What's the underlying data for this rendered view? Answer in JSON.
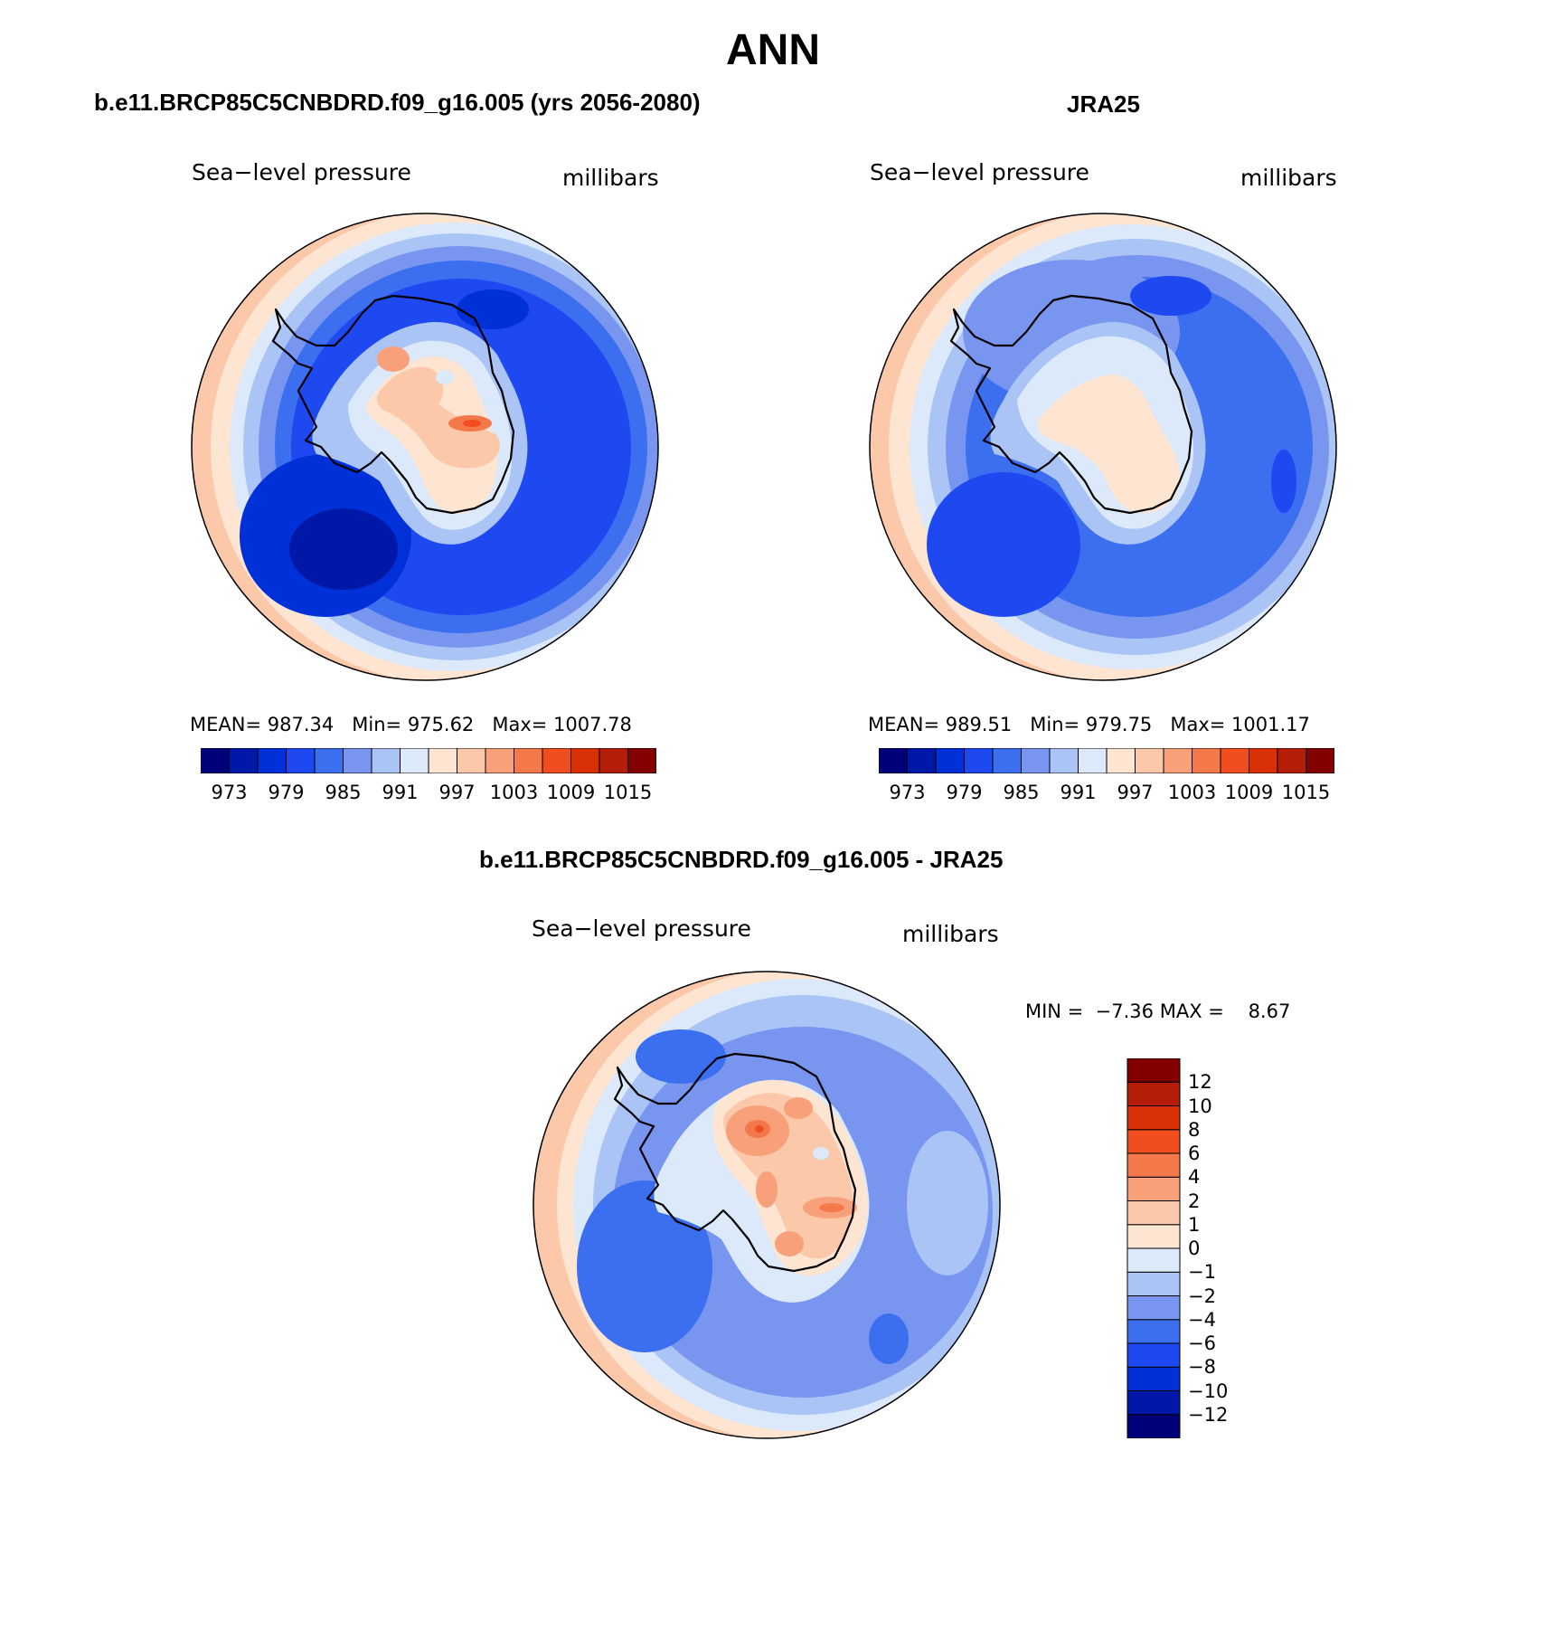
{
  "title": "ANN",
  "panels": [
    {
      "id": "model",
      "title": "b.e11.BRCP85C5CNBDRD.f09_g16.005 (yrs 2056-2080)",
      "variable": "Sea−level pressure",
      "units": "millibars",
      "mean_label": "MEAN=",
      "mean": "987.34",
      "min_label": "Min=",
      "min": "975.62",
      "max_label": "Max=",
      "max": "1007.78"
    },
    {
      "id": "obs",
      "title": "JRA25",
      "variable": "Sea−level pressure",
      "units": "millibars",
      "mean_label": "MEAN=",
      "mean": "989.51",
      "min_label": "Min=",
      "min": "979.75",
      "max_label": "Max=",
      "max": "1001.17"
    },
    {
      "id": "diff",
      "title": "b.e11.BRCP85C5CNBDRD.f09_g16.005 - JRA25",
      "variable": "Sea−level pressure",
      "units": "millibars",
      "min_label": "MIN =",
      "min": "−7.36",
      "max_label": "MAX =",
      "max": "8.67"
    }
  ],
  "colorbar_abs": {
    "colors": [
      "#000078",
      "#0018a8",
      "#0030d8",
      "#1e48f0",
      "#3c6ef0",
      "#7896f0",
      "#aac4f6",
      "#dce9fb",
      "#fde5d2",
      "#fbc8aa",
      "#f8a07a",
      "#f5784a",
      "#f04e1e",
      "#da3008",
      "#b41e08",
      "#820000"
    ],
    "tick_labels": [
      "973",
      "979",
      "985",
      "991",
      "997",
      "1003",
      "1009",
      "1015"
    ]
  },
  "colorbar_diff": {
    "colors": [
      "#000078",
      "#0018a8",
      "#0030d8",
      "#1e48f0",
      "#3c6ef0",
      "#7896f0",
      "#aac4f6",
      "#dce9fb",
      "#fde5d2",
      "#fbc8aa",
      "#f8a07a",
      "#f5784a",
      "#f04e1e",
      "#da3008",
      "#b41e08",
      "#820000"
    ],
    "tick_labels": [
      "12",
      "10",
      "8",
      "6",
      "4",
      "2",
      "1",
      "0",
      "−1",
      "−2",
      "−4",
      "−6",
      "−8",
      "−10",
      "−12"
    ]
  },
  "chart_data": [
    {
      "type": "heatmap",
      "title": "b.e11.BRCP85C5CNBDRD.f09_g16.005 (yrs 2056-2080)",
      "variable": "Sea−level pressure",
      "units": "millibars",
      "projection": "south polar stereographic",
      "contour_levels": [
        973,
        976,
        979,
        982,
        985,
        988,
        991,
        994,
        997,
        1000,
        1003,
        1006,
        1009,
        1012,
        1015
      ],
      "mean": 987.34,
      "min": 975.62,
      "max": 1007.78
    },
    {
      "type": "heatmap",
      "title": "JRA25",
      "variable": "Sea−level pressure",
      "units": "millibars",
      "projection": "south polar stereographic",
      "contour_levels": [
        973,
        976,
        979,
        982,
        985,
        988,
        991,
        994,
        997,
        1000,
        1003,
        1006,
        1009,
        1012,
        1015
      ],
      "mean": 989.51,
      "min": 979.75,
      "max": 1001.17
    },
    {
      "type": "heatmap",
      "title": "b.e11.BRCP85C5CNBDRD.f09_g16.005 - JRA25",
      "variable": "Sea−level pressure",
      "units": "millibars",
      "projection": "south polar stereographic",
      "contour_levels": [
        -12,
        -10,
        -8,
        -6,
        -4,
        -2,
        -1,
        0,
        1,
        2,
        4,
        6,
        8,
        10,
        12
      ],
      "min": -7.36,
      "max": 8.67
    }
  ]
}
